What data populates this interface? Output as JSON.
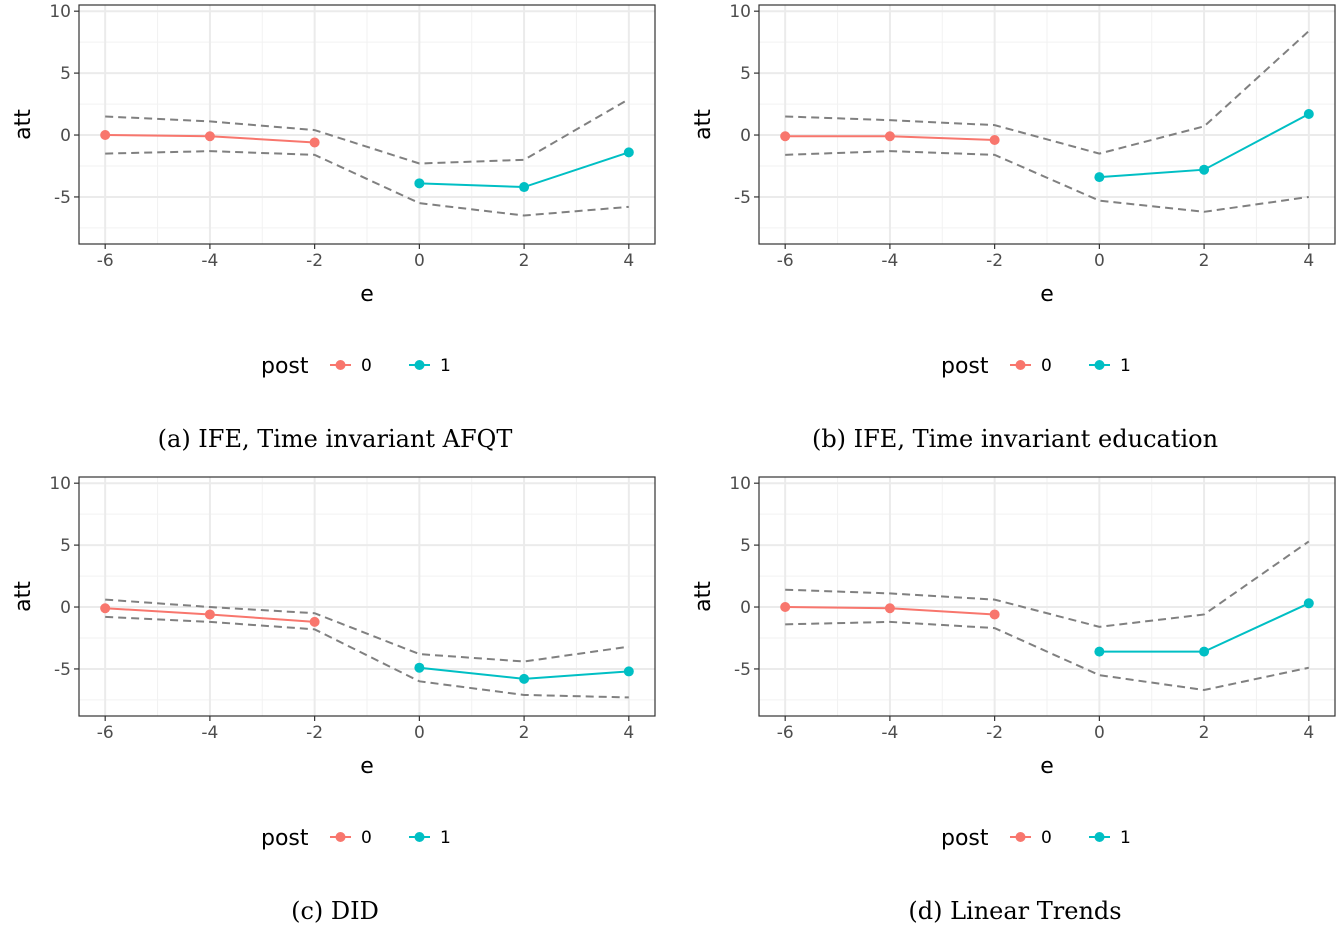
{
  "chart_data": [
    {
      "type": "line",
      "caption": "(a) IFE, Time invariant AFQT",
      "xlabel": "e",
      "ylabel": "att",
      "xlim": [
        -6.5,
        4.5
      ],
      "ylim": [
        -8.8,
        10.5
      ],
      "xticks": [
        "-6",
        "-4",
        "-2",
        "0",
        "2",
        "4"
      ],
      "yticks": [
        "-5",
        "0",
        "5",
        "10"
      ],
      "grid": true,
      "legend": {
        "title": "post",
        "position": "bottom",
        "entries": [
          "0",
          "1"
        ]
      },
      "series": [
        {
          "name": "0",
          "color": "#F8766D",
          "x": [
            -6,
            -4,
            -2
          ],
          "y": [
            0.0,
            -0.1,
            -0.6
          ]
        },
        {
          "name": "1",
          "color": "#00BFC4",
          "x": [
            0,
            2,
            4
          ],
          "y": [
            -3.9,
            -4.2,
            -1.4
          ]
        }
      ],
      "bands": {
        "color": "#808080",
        "x": [
          -6,
          -4,
          -2,
          0,
          2,
          4
        ],
        "upper": [
          1.5,
          1.1,
          0.4,
          -2.3,
          -2.0,
          2.9
        ],
        "lower": [
          -1.5,
          -1.3,
          -1.6,
          -5.5,
          -6.5,
          -5.8
        ]
      }
    },
    {
      "type": "line",
      "caption": "(b) IFE, Time invariant education",
      "xlabel": "e",
      "ylabel": "att",
      "xlim": [
        -6.5,
        4.5
      ],
      "ylim": [
        -8.8,
        10.5
      ],
      "xticks": [
        "-6",
        "-4",
        "-2",
        "0",
        "2",
        "4"
      ],
      "yticks": [
        "-5",
        "0",
        "5",
        "10"
      ],
      "grid": true,
      "legend": {
        "title": "post",
        "position": "bottom",
        "entries": [
          "0",
          "1"
        ]
      },
      "series": [
        {
          "name": "0",
          "color": "#F8766D",
          "x": [
            -6,
            -4,
            -2
          ],
          "y": [
            -0.1,
            -0.1,
            -0.4
          ]
        },
        {
          "name": "1",
          "color": "#00BFC4",
          "x": [
            0,
            2,
            4
          ],
          "y": [
            -3.4,
            -2.8,
            1.7
          ]
        }
      ],
      "bands": {
        "color": "#808080",
        "x": [
          -6,
          -4,
          -2,
          0,
          2,
          4
        ],
        "upper": [
          1.5,
          1.2,
          0.8,
          -1.5,
          0.7,
          8.4
        ],
        "lower": [
          -1.6,
          -1.3,
          -1.6,
          -5.3,
          -6.2,
          -5.0
        ]
      }
    },
    {
      "type": "line",
      "caption": "(c) DID",
      "xlabel": "e",
      "ylabel": "att",
      "xlim": [
        -6.5,
        4.5
      ],
      "ylim": [
        -8.8,
        10.5
      ],
      "xticks": [
        "-6",
        "-4",
        "-2",
        "0",
        "2",
        "4"
      ],
      "yticks": [
        "-5",
        "0",
        "5",
        "10"
      ],
      "grid": true,
      "legend": {
        "title": "post",
        "position": "bottom",
        "entries": [
          "0",
          "1"
        ]
      },
      "series": [
        {
          "name": "0",
          "color": "#F8766D",
          "x": [
            -6,
            -4,
            -2
          ],
          "y": [
            -0.1,
            -0.6,
            -1.2
          ]
        },
        {
          "name": "1",
          "color": "#00BFC4",
          "x": [
            0,
            2,
            4
          ],
          "y": [
            -4.9,
            -5.8,
            -5.2
          ]
        }
      ],
      "bands": {
        "color": "#808080",
        "x": [
          -6,
          -4,
          -2,
          0,
          2,
          4
        ],
        "upper": [
          0.6,
          0.0,
          -0.5,
          -3.8,
          -4.4,
          -3.2
        ],
        "lower": [
          -0.8,
          -1.2,
          -1.8,
          -6.0,
          -7.1,
          -7.3
        ]
      }
    },
    {
      "type": "line",
      "caption": "(d) Linear Trends",
      "xlabel": "e",
      "ylabel": "att",
      "xlim": [
        -6.5,
        4.5
      ],
      "ylim": [
        -8.8,
        10.5
      ],
      "xticks": [
        "-6",
        "-4",
        "-2",
        "0",
        "2",
        "4"
      ],
      "yticks": [
        "-5",
        "0",
        "5",
        "10"
      ],
      "grid": true,
      "legend": {
        "title": "post",
        "position": "bottom",
        "entries": [
          "0",
          "1"
        ]
      },
      "series": [
        {
          "name": "0",
          "color": "#F8766D",
          "x": [
            -6,
            -4,
            -2
          ],
          "y": [
            0.0,
            -0.1,
            -0.6
          ]
        },
        {
          "name": "1",
          "color": "#00BFC4",
          "x": [
            0,
            2,
            4
          ],
          "y": [
            -3.6,
            -3.6,
            0.3
          ]
        }
      ],
      "bands": {
        "color": "#808080",
        "x": [
          -6,
          -4,
          -2,
          0,
          2,
          4
        ],
        "upper": [
          1.4,
          1.1,
          0.6,
          -1.6,
          -0.6,
          5.3
        ],
        "lower": [
          -1.4,
          -1.2,
          -1.7,
          -5.5,
          -6.7,
          -4.9
        ]
      }
    }
  ]
}
